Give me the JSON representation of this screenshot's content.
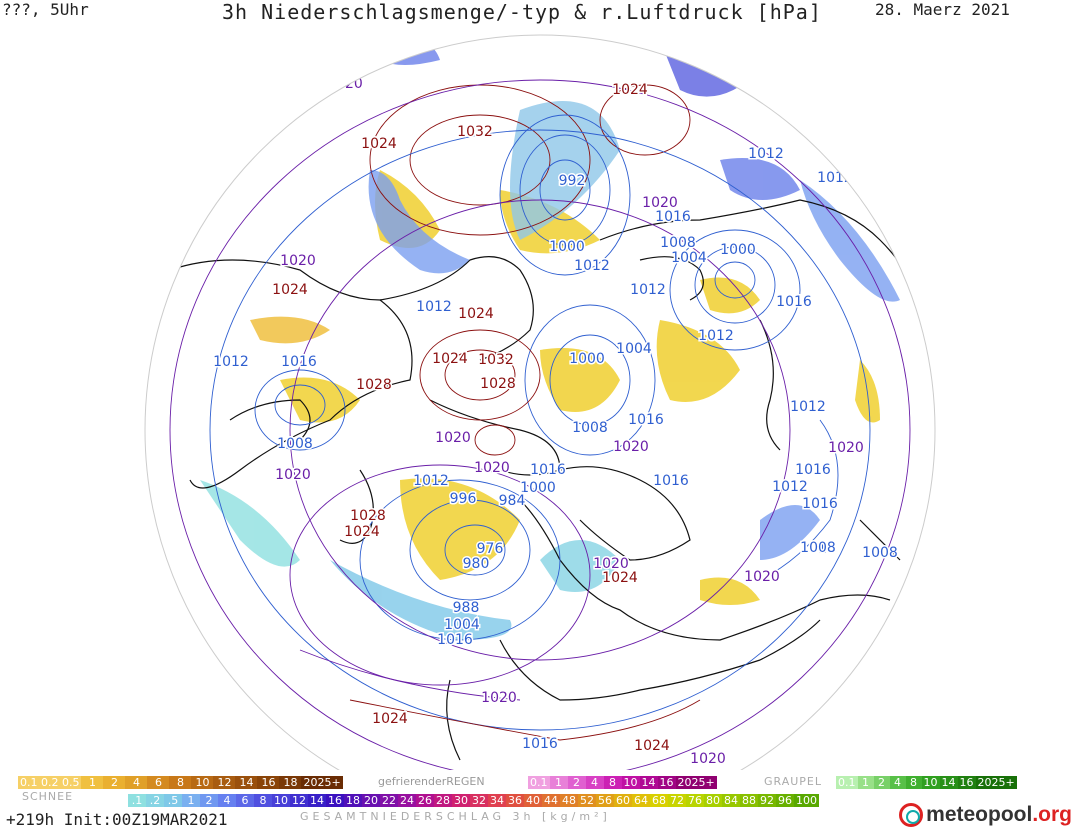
{
  "header": {
    "left": "???, 5Uhr",
    "title": "3h Niederschlagsmenge/-typ & r.Luftdruck [hPa]",
    "date": "28. Maerz 2021"
  },
  "isobars": [
    {
      "v": "1020",
      "c": "#6a1fa8"
    },
    {
      "v": "1024",
      "c": "#8b1010"
    },
    {
      "v": "1032",
      "c": "#8b1010"
    },
    {
      "v": "1024",
      "c": "#8b1010"
    },
    {
      "v": "992",
      "c": "#2f5fd0"
    },
    {
      "v": "1012",
      "c": "#2f5fd0"
    },
    {
      "v": "1012",
      "c": "#2f5fd0"
    },
    {
      "v": "1020",
      "c": "#6a1fa8"
    },
    {
      "v": "1016",
      "c": "#2f5fd0"
    },
    {
      "v": "1000",
      "c": "#2f5fd0"
    },
    {
      "v": "1008",
      "c": "#2f5fd0"
    },
    {
      "v": "1004",
      "c": "#2f5fd0"
    },
    {
      "v": "1000",
      "c": "#2f5fd0"
    },
    {
      "v": "1012",
      "c": "#2f5fd0"
    },
    {
      "v": "1012",
      "c": "#2f5fd0"
    },
    {
      "v": "1016",
      "c": "#2f5fd0"
    },
    {
      "v": "1020",
      "c": "#6a1fa8"
    },
    {
      "v": "1024",
      "c": "#8b1010"
    },
    {
      "v": "1012",
      "c": "#2f5fd0"
    },
    {
      "v": "1024",
      "c": "#8b1010"
    },
    {
      "v": "1012",
      "c": "#2f5fd0"
    },
    {
      "v": "1016",
      "c": "#2f5fd0"
    },
    {
      "v": "1024",
      "c": "#8b1010"
    },
    {
      "v": "1032",
      "c": "#8b1010"
    },
    {
      "v": "1028",
      "c": "#8b1010"
    },
    {
      "v": "1028",
      "c": "#8b1010"
    },
    {
      "v": "1000",
      "c": "#2f5fd0"
    },
    {
      "v": "1004",
      "c": "#2f5fd0"
    },
    {
      "v": "1012",
      "c": "#2f5fd0"
    },
    {
      "v": "1012",
      "c": "#2f5fd0"
    },
    {
      "v": "1016",
      "c": "#2f5fd0"
    },
    {
      "v": "1020",
      "c": "#6a1fa8"
    },
    {
      "v": "1008",
      "c": "#2f5fd0"
    },
    {
      "v": "1008",
      "c": "#2f5fd0"
    },
    {
      "v": "1020",
      "c": "#6a1fa8"
    },
    {
      "v": "1020",
      "c": "#6a1fa8"
    },
    {
      "v": "1012",
      "c": "#2f5fd0"
    },
    {
      "v": "1020",
      "c": "#6a1fa8"
    },
    {
      "v": "1016",
      "c": "#2f5fd0"
    },
    {
      "v": "1000",
      "c": "#2f5fd0"
    },
    {
      "v": "996",
      "c": "#2f5fd0"
    },
    {
      "v": "984",
      "c": "#2f5fd0"
    },
    {
      "v": "1016",
      "c": "#2f5fd0"
    },
    {
      "v": "1020",
      "c": "#6a1fa8"
    },
    {
      "v": "1016",
      "c": "#2f5fd0"
    },
    {
      "v": "1012",
      "c": "#2f5fd0"
    },
    {
      "v": "1016",
      "c": "#2f5fd0"
    },
    {
      "v": "1020",
      "c": "#6a1fa8"
    },
    {
      "v": "1016",
      "c": "#2f5fd0"
    },
    {
      "v": "1028",
      "c": "#8b1010"
    },
    {
      "v": "1024",
      "c": "#8b1010"
    },
    {
      "v": "976",
      "c": "#2f5fd0"
    },
    {
      "v": "980",
      "c": "#2f5fd0"
    },
    {
      "v": "1008",
      "c": "#2f5fd0"
    },
    {
      "v": "1008",
      "c": "#2f5fd0"
    },
    {
      "v": "1020",
      "c": "#6a1fa8"
    },
    {
      "v": "1024",
      "c": "#8b1010"
    },
    {
      "v": "1020",
      "c": "#6a1fa8"
    },
    {
      "v": "988",
      "c": "#2f5fd0"
    },
    {
      "v": "1004",
      "c": "#2f5fd0"
    },
    {
      "v": "1016",
      "c": "#2f5fd0"
    },
    {
      "v": "1020",
      "c": "#6a1fa8"
    },
    {
      "v": "1024",
      "c": "#8b1010"
    },
    {
      "v": "1016",
      "c": "#2f5fd0"
    },
    {
      "v": "1024",
      "c": "#8b1010"
    },
    {
      "v": "1020",
      "c": "#6a1fa8"
    }
  ],
  "legend_snow": {
    "label": "SCHNEE",
    "items": [
      {
        "t": "0.1 0.2 0.5",
        "c": "#f6d066"
      },
      {
        "t": "1",
        "c": "#f0c040"
      },
      {
        "t": "2",
        "c": "#eab030"
      },
      {
        "t": "4",
        "c": "#e0a028"
      },
      {
        "t": "6",
        "c": "#d48a20"
      },
      {
        "t": "8",
        "c": "#c87818"
      },
      {
        "t": "10",
        "c": "#b86a14"
      },
      {
        "t": "12",
        "c": "#a85c10"
      },
      {
        "t": "14",
        "c": "#9a500c"
      },
      {
        "t": "16",
        "c": "#8a4408"
      },
      {
        "t": "18",
        "c": "#7a3806"
      },
      {
        "t": "2025+",
        "c": "#6a2c04"
      }
    ]
  },
  "legend_freezing": {
    "label": "gefrierenderREGEN",
    "items": [
      {
        "t": "0.1",
        "c": "#f0a0e0"
      },
      {
        "t": "1",
        "c": "#e880d8"
      },
      {
        "t": "2",
        "c": "#e060d0"
      },
      {
        "t": "4",
        "c": "#d840c4"
      },
      {
        "t": "8",
        "c": "#cc20b4"
      },
      {
        "t": "10",
        "c": "#c010a4"
      },
      {
        "t": "14",
        "c": "#b00894"
      },
      {
        "t": "16",
        "c": "#a00484"
      },
      {
        "t": "2025+",
        "c": "#900070"
      }
    ]
  },
  "legend_graupel": {
    "label": "GRAUPEL",
    "items": [
      {
        "t": "0.1",
        "c": "#b8f0b0"
      },
      {
        "t": "1",
        "c": "#98e088"
      },
      {
        "t": "2",
        "c": "#78d068"
      },
      {
        "t": "4",
        "c": "#58c048"
      },
      {
        "t": "8",
        "c": "#40b030"
      },
      {
        "t": "10",
        "c": "#30a020"
      },
      {
        "t": "14",
        "c": "#289018"
      },
      {
        "t": "16",
        "c": "#208010"
      },
      {
        "t": "2025+",
        "c": "#187008"
      }
    ]
  },
  "legend_total": {
    "items": [
      {
        "t": ".1",
        "c": "#8ee0e0"
      },
      {
        "t": ".2",
        "c": "#86d4e4"
      },
      {
        "t": ".5",
        "c": "#7ec8e8"
      },
      {
        "t": "1",
        "c": "#7ab0f0"
      },
      {
        "t": "2",
        "c": "#7098f0"
      },
      {
        "t": "4",
        "c": "#6680f0"
      },
      {
        "t": "6",
        "c": "#5c68e8"
      },
      {
        "t": "8",
        "c": "#5050e0"
      },
      {
        "t": "10",
        "c": "#4840d8"
      },
      {
        "t": "12",
        "c": "#4030d0"
      },
      {
        "t": "14",
        "c": "#3820c8"
      },
      {
        "t": "16",
        "c": "#3a10c0"
      },
      {
        "t": "18",
        "c": "#5010b8"
      },
      {
        "t": "20",
        "c": "#6810b0"
      },
      {
        "t": "22",
        "c": "#8010a8"
      },
      {
        "t": "24",
        "c": "#9810a0"
      },
      {
        "t": "26",
        "c": "#b01090"
      },
      {
        "t": "28",
        "c": "#c01880"
      },
      {
        "t": "30",
        "c": "#d02070"
      },
      {
        "t": "32",
        "c": "#d83060"
      },
      {
        "t": "34",
        "c": "#e04050"
      },
      {
        "t": "36",
        "c": "#e05040"
      },
      {
        "t": "40",
        "c": "#e06038"
      },
      {
        "t": "44",
        "c": "#e07030"
      },
      {
        "t": "48",
        "c": "#e08028"
      },
      {
        "t": "52",
        "c": "#e09020"
      },
      {
        "t": "56",
        "c": "#e0a018"
      },
      {
        "t": "60",
        "c": "#e0b010"
      },
      {
        "t": "64",
        "c": "#e0c008"
      },
      {
        "t": "68",
        "c": "#d8d000"
      },
      {
        "t": "72",
        "c": "#c8d400"
      },
      {
        "t": "76",
        "c": "#b8d400"
      },
      {
        "t": "80",
        "c": "#a8d000"
      },
      {
        "t": "84",
        "c": "#98c800"
      },
      {
        "t": "88",
        "c": "#88c000"
      },
      {
        "t": "92",
        "c": "#78b800"
      },
      {
        "t": "96",
        "c": "#68b000"
      },
      {
        "t": "100",
        "c": "#58a800"
      }
    ]
  },
  "footer": {
    "run": "+219h  Init:00Z19MAR2021",
    "gesamt": "GESAMTNIEDERSCHLAG 3h [kg/m²]",
    "logo_main": "meteopool",
    "logo_tld": ".org"
  }
}
